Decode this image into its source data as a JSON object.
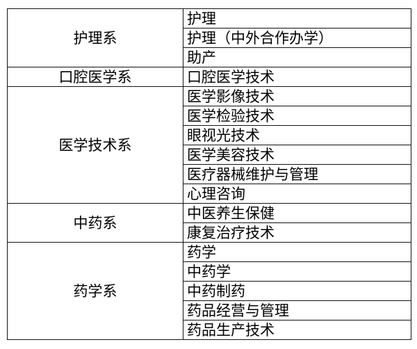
{
  "groups": [
    {
      "department": "护理系",
      "majors": [
        "护理",
        "护理（中外合作办学）",
        "助产"
      ]
    },
    {
      "department": "口腔医学系",
      "majors": [
        "口腔医学技术"
      ]
    },
    {
      "department": "医学技术系",
      "majors": [
        "医学影像技术",
        "医学检验技术",
        "眼视光技术",
        "医学美容技术",
        "医疗器械维护与管理",
        "心理咨询"
      ]
    },
    {
      "department": "中药系",
      "majors": [
        "中医养生保健",
        "康复治疗技术"
      ]
    },
    {
      "department": "药学系",
      "majors": [
        "药学",
        "中药学",
        "中药制药",
        "药品经营与管理",
        "药品生产技术"
      ]
    }
  ]
}
